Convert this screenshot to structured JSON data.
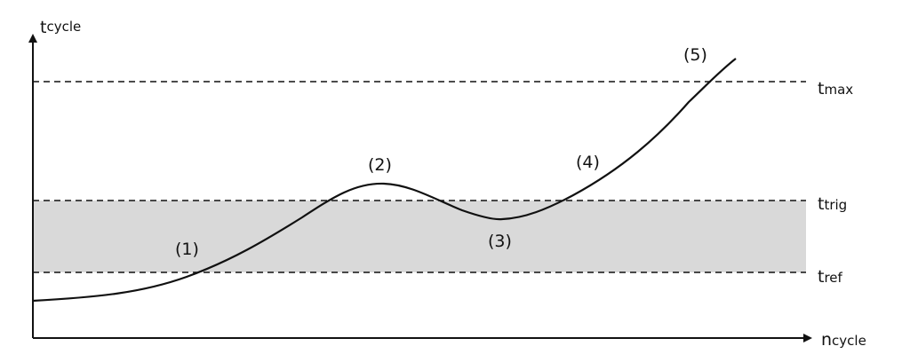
{
  "colors": {
    "line": "#111111",
    "band": "#d9d9d9",
    "background": "#ffffff"
  },
  "axes": {
    "y_label": {
      "main": "t",
      "sub": "cycle"
    },
    "x_label": {
      "main": "n",
      "sub": "cycle"
    }
  },
  "thresholds": [
    {
      "id": "max",
      "main": "t",
      "sub": "max"
    },
    {
      "id": "trig",
      "main": "t",
      "sub": "trig"
    },
    {
      "id": "ref",
      "main": "t",
      "sub": "ref"
    }
  ],
  "markers": [
    "(1)",
    "(2)",
    "(3)",
    "(4)",
    "(5)"
  ]
}
